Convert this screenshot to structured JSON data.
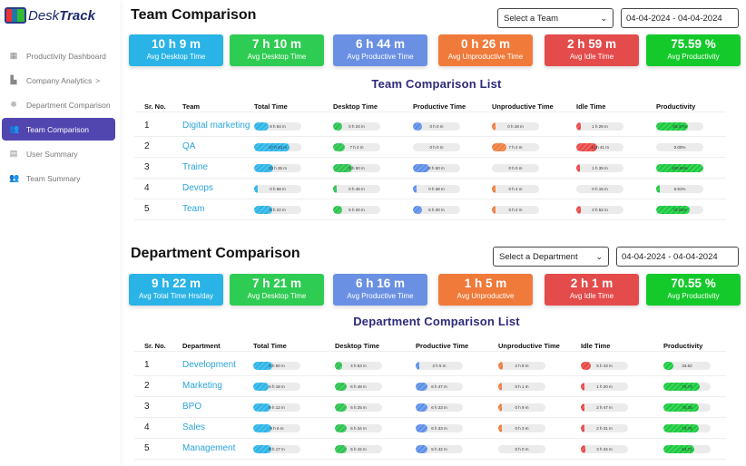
{
  "brand": {
    "name_light": "Desk",
    "name_bold": "Track"
  },
  "sidebar": {
    "items": [
      {
        "label": "Productivity Dashboard",
        "icon": "grid-icon",
        "glyph": "▦"
      },
      {
        "label": "Company Analytics",
        "icon": "factory-icon",
        "glyph": "▙",
        "chevron": ">"
      },
      {
        "label": "Department Comparison",
        "icon": "snowflake-icon",
        "glyph": "❄"
      },
      {
        "label": "Team Comparison",
        "icon": "users-icon",
        "glyph": "👥",
        "active": true
      },
      {
        "label": "User Summary",
        "icon": "document-icon",
        "glyph": "▤"
      },
      {
        "label": "Team Summary",
        "icon": "group-icon",
        "glyph": "👥"
      }
    ]
  },
  "colors": {
    "total": "#29b3e6",
    "desktop": "#27c24c",
    "productive": "#5b8de8",
    "unproductive": "#f07a3a",
    "idle": "#e94444",
    "productivity": "#16c93a"
  },
  "team": {
    "title": "Team Comparison",
    "select": "Select a Team",
    "date": "04-04-2024 - 04-04-2024",
    "cards": [
      {
        "value": "10 h 9 m",
        "label": "Avg Desktop Time",
        "color": "#29b3e6"
      },
      {
        "value": "7 h 10 m",
        "label": "Avg Desktop Time",
        "color": "#2ecc52"
      },
      {
        "value": "6 h 44 m",
        "label": "Avg Productive Time",
        "color": "#6a90e3"
      },
      {
        "value": "0 h 26 m",
        "label": "Avg Unproductive Time",
        "color": "#f07a3a"
      },
      {
        "value": "2 h 59 m",
        "label": "Avg Idle Time",
        "color": "#e44b4b"
      },
      {
        "value": "75.59 %",
        "label": "Avg Productivity",
        "color": "#14c92a"
      }
    ],
    "list_title": "Team Comparison List",
    "headers": [
      "Sr. No.",
      "Team",
      "Total Time",
      "Desktop Time",
      "Productive Time",
      "Unproductive Time",
      "Idle Time",
      "Productivity"
    ],
    "rows": [
      {
        "sr": "1",
        "name": "Digital marketing",
        "cells": [
          {
            "text": "8 h 54 m",
            "fill": 0.3
          },
          {
            "text": "0 h 24 m",
            "fill": 0.2
          },
          {
            "text": "0 h 0 m",
            "fill": 0.2
          },
          {
            "text": "0 h 18 m",
            "fill": 0.03
          },
          {
            "text": "1 h 29 m",
            "fill": 0.1
          },
          {
            "text": "65.47%",
            "fill": 0.68
          }
        ]
      },
      {
        "sr": "2",
        "name": "QA",
        "cells": [
          {
            "text": "17 h 43 m",
            "fill": 0.75
          },
          {
            "text": "7 h 2 m",
            "fill": 0.25
          },
          {
            "text": "0 h 0 m",
            "fill": 0
          },
          {
            "text": "7 h 2 m",
            "fill": 0.3
          },
          {
            "text": "10 h 41 m",
            "fill": 0.45
          },
          {
            "text": "0.00%",
            "fill": 0
          }
        ]
      },
      {
        "sr": "3",
        "name": "Traine",
        "cells": [
          {
            "text": "10 h 36 m",
            "fill": 0.4
          },
          {
            "text": "8 h 50 m",
            "fill": 0.4
          },
          {
            "text": "8 h 50 m",
            "fill": 0.35
          },
          {
            "text": "0 h 0 m",
            "fill": 0
          },
          {
            "text": "1 h 39 m",
            "fill": 0.06
          },
          {
            "text": "100.00%",
            "fill": 1
          }
        ]
      },
      {
        "sr": "4",
        "name": "Devops",
        "cells": [
          {
            "text": "0 h 58 m",
            "fill": 0.03
          },
          {
            "text": "0 h 45 m",
            "fill": 0.03
          },
          {
            "text": "0 h 38 m",
            "fill": 0.02
          },
          {
            "text": "0 h 4 m",
            "fill": 0.02
          },
          {
            "text": "0 h 16 m",
            "fill": 0
          },
          {
            "text": "6.91%",
            "fill": 0.07
          }
        ]
      },
      {
        "sr": "5",
        "name": "Team",
        "cells": [
          {
            "text": "8 h 22 m",
            "fill": 0.38
          },
          {
            "text": "6 h 20 m",
            "fill": 0.2
          },
          {
            "text": "6 h 20 m",
            "fill": 0.2
          },
          {
            "text": "0 h 2 m",
            "fill": 0.02
          },
          {
            "text": "2 h 52 m",
            "fill": 0.1
          },
          {
            "text": "72.25%",
            "fill": 0.72
          }
        ]
      }
    ]
  },
  "dept": {
    "title": "Department Comparison",
    "select": "Select a Department",
    "date": "04-04-2024 - 04-04-2024",
    "cards": [
      {
        "value": "9 h 22 m",
        "label": "Avg Total Time Hrs/day",
        "color": "#29b3e6"
      },
      {
        "value": "7 h 21 m",
        "label": "Avg Desktop Time",
        "color": "#2ecc52"
      },
      {
        "value": "6 h 16 m",
        "label": "Avg Productive Time",
        "color": "#6a90e3"
      },
      {
        "value": "1 h 5 m",
        "label": "Avg Unproductive",
        "color": "#f07a3a"
      },
      {
        "value": "2 h 1 m",
        "label": "Avg Idle Time",
        "color": "#e44b4b"
      },
      {
        "value": "70.55 %",
        "label": "Avg Productivity",
        "color": "#14c92a"
      }
    ],
    "list_title": "Department Comparison List",
    "headers": [
      "Sr. No.",
      "Department",
      "Total Time",
      "Desktop Time",
      "Productive Time",
      "Unproductive Time",
      "Idle Time",
      "Productivity"
    ],
    "rows": [
      {
        "sr": "1",
        "name": "Development",
        "cells": [
          {
            "text": "9 h 50 m",
            "fill": 0.4
          },
          {
            "text": "4 h 53 m",
            "fill": 0.15
          },
          {
            "text": "2 h 5 m",
            "fill": 0.08
          },
          {
            "text": "2 h 8 m",
            "fill": 0.1
          },
          {
            "text": "5 h 43 m",
            "fill": 0.22
          },
          {
            "text": "33.62",
            "fill": 0.22
          }
        ]
      },
      {
        "sr": "2",
        "name": "Marketing",
        "cells": [
          {
            "text": "6 h 18 m",
            "fill": 0.33
          },
          {
            "text": "6 h 48 m",
            "fill": 0.25
          },
          {
            "text": "6 h 47 m",
            "fill": 0.25
          },
          {
            "text": "0 h 1 m",
            "fill": 0.01
          },
          {
            "text": "1 h 20 m",
            "fill": 0.03
          },
          {
            "text": "76.73",
            "fill": 0.76
          }
        ]
      },
      {
        "sr": "3",
        "name": "BPO",
        "cells": [
          {
            "text": "9 h 12 m",
            "fill": 0.37
          },
          {
            "text": "6 h 25 m",
            "fill": 0.25
          },
          {
            "text": "6 h 23 m",
            "fill": 0.25
          },
          {
            "text": "0 h 9 m",
            "fill": 0.05
          },
          {
            "text": "2 h 47 m",
            "fill": 0.08
          },
          {
            "text": "75.39",
            "fill": 0.75
          }
        ]
      },
      {
        "sr": "4",
        "name": "Sales",
        "cells": [
          {
            "text": "9 h 6 m",
            "fill": 0.38
          },
          {
            "text": "6 h 34 m",
            "fill": 0.25
          },
          {
            "text": "6 h 33 m",
            "fill": 0.25
          },
          {
            "text": "0 h 3 m",
            "fill": 0.03
          },
          {
            "text": "2 h 31 m",
            "fill": 0.08
          },
          {
            "text": "73.78",
            "fill": 0.75
          }
        ]
      },
      {
        "sr": "5",
        "name": "Management",
        "cells": [
          {
            "text": "9 h 17 m",
            "fill": 0.38
          },
          {
            "text": "5 h 42 m",
            "fill": 0.25
          },
          {
            "text": "5 h 42 m",
            "fill": 0.25
          },
          {
            "text": "0 h 0 m",
            "fill": 0
          },
          {
            "text": "3 h 34 m",
            "fill": 0.1
          },
          {
            "text": "64.72",
            "fill": 0.65
          }
        ]
      }
    ]
  }
}
